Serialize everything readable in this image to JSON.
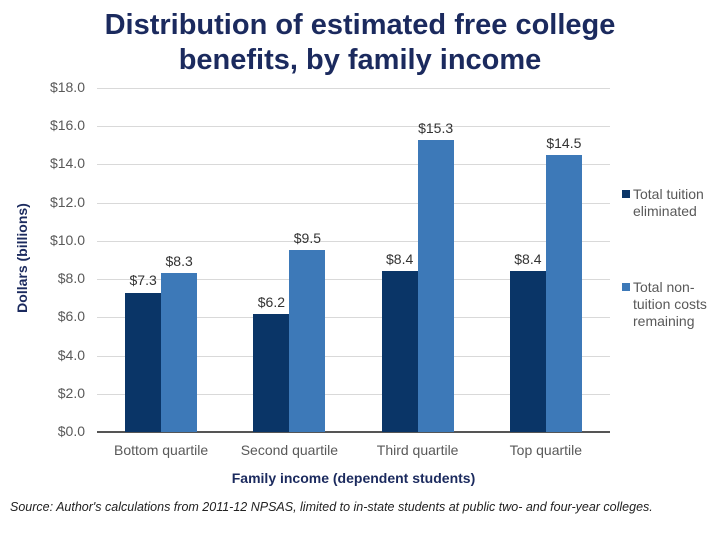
{
  "title": "Distribution of estimated free college benefits, by family income",
  "title_lines": [
    "Distribution of estimated free college",
    "benefits, by family income"
  ],
  "y_axis": {
    "label": "Dollars (billions)",
    "ticks": [
      "$18.0",
      "$16.0",
      "$14.0",
      "$12.0",
      "$10.0",
      "$8.0",
      "$6.0",
      "$4.0",
      "$2.0",
      "$0.0"
    ]
  },
  "x_axis": {
    "label": "Family income (dependent students)",
    "categories": [
      "Bottom quartile",
      "Second quartile",
      "Third quartile",
      "Top quartile"
    ]
  },
  "legend": [
    {
      "label": "Total tuition eliminated",
      "color": "#0a3567"
    },
    {
      "label": "Total non-tuition costs remaining",
      "color": "#3d79b8"
    }
  ],
  "value_labels": {
    "s0": [
      "$7.3",
      "$6.2",
      "$8.4",
      "$8.4"
    ],
    "s1": [
      "$8.3",
      "$9.5",
      "$15.3",
      "$14.5"
    ]
  },
  "source": "Source: Author's calculations from 2011-12 NPSAS, limited to in-state students at public two- and four-year colleges.",
  "chart_data": {
    "type": "bar",
    "title": "Distribution of estimated free college benefits, by family income",
    "xlabel": "Family income (dependent students)",
    "ylabel": "Dollars (billions)",
    "categories": [
      "Bottom quartile",
      "Second quartile",
      "Third quartile",
      "Top quartile"
    ],
    "series": [
      {
        "name": "Total tuition eliminated",
        "values": [
          7.3,
          6.2,
          8.4,
          8.4
        ],
        "color": "#0a3567"
      },
      {
        "name": "Total non-tuition costs remaining",
        "values": [
          8.3,
          9.5,
          15.3,
          14.5
        ],
        "color": "#3d79b8"
      }
    ],
    "ylim": [
      0,
      18
    ],
    "ytick_step": 2,
    "grid": true,
    "legend_position": "right",
    "annotations": [
      "Source: Author's calculations from 2011-12 NPSAS, limited to in-state students at public two- and four-year colleges."
    ]
  }
}
